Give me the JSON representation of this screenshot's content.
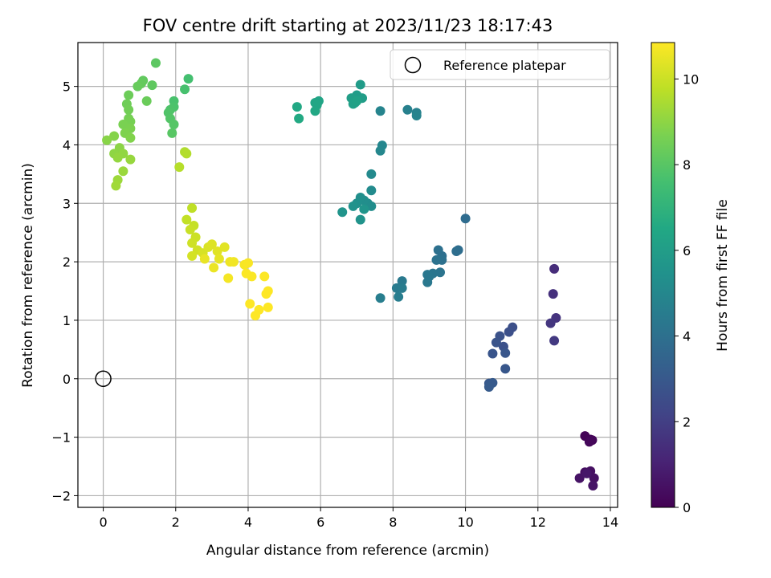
{
  "chart_data": {
    "type": "scatter",
    "title": "FOV centre drift starting at 2023/11/23 18:17:43",
    "xlabel": "Angular distance from reference (arcmin)",
    "ylabel": "Rotation from reference (arcmin)",
    "xlim": [
      -0.7,
      14.2
    ],
    "ylim": [
      -2.2,
      5.75
    ],
    "xticks": [
      0,
      2,
      4,
      6,
      8,
      10,
      12,
      14
    ],
    "yticks": [
      -2,
      -1,
      0,
      1,
      2,
      3,
      4,
      5
    ],
    "grid": true,
    "colormap": "viridis",
    "colorbar": {
      "label": "Hours from first FF file",
      "range": [
        0,
        10.85
      ],
      "ticks": [
        0,
        2,
        4,
        6,
        8,
        10
      ]
    },
    "legend": {
      "placement": "top-right",
      "entries": [
        "Reference platepar"
      ]
    },
    "reference_point": {
      "x": 0,
      "y": 0
    },
    "points": [
      [
        13.3,
        -0.98,
        0.05
      ],
      [
        13.45,
        -1.04,
        0.1
      ],
      [
        13.5,
        -1.05,
        0.15
      ],
      [
        13.42,
        -1.08,
        0.2
      ],
      [
        13.3,
        -1.6,
        0.4
      ],
      [
        13.45,
        -1.58,
        0.45
      ],
      [
        13.55,
        -1.7,
        0.5
      ],
      [
        13.15,
        -1.7,
        0.55
      ],
      [
        13.52,
        -1.83,
        0.6
      ],
      [
        13.35,
        -1.62,
        0.65
      ],
      [
        12.45,
        1.88,
        1.4
      ],
      [
        12.42,
        1.45,
        1.5
      ],
      [
        12.5,
        1.04,
        1.6
      ],
      [
        12.35,
        0.95,
        1.7
      ],
      [
        12.45,
        0.65,
        1.8
      ],
      [
        11.3,
        0.88,
        2.6
      ],
      [
        11.2,
        0.8,
        2.65
      ],
      [
        11.05,
        0.55,
        2.7
      ],
      [
        10.95,
        0.73,
        2.75
      ],
      [
        10.85,
        0.62,
        2.8
      ],
      [
        10.75,
        0.43,
        2.85
      ],
      [
        11.1,
        0.44,
        2.9
      ],
      [
        11.1,
        0.17,
        2.95
      ],
      [
        10.65,
        -0.08,
        3.0
      ],
      [
        10.75,
        -0.07,
        3.05
      ],
      [
        10.65,
        -0.14,
        3.1
      ],
      [
        10.0,
        2.74,
        3.8
      ],
      [
        9.8,
        2.2,
        3.85
      ],
      [
        9.75,
        2.18,
        3.9
      ],
      [
        9.35,
        2.1,
        3.95
      ],
      [
        9.25,
        2.2,
        4.0
      ],
      [
        9.35,
        2.03,
        4.05
      ],
      [
        9.2,
        2.03,
        4.1
      ],
      [
        9.3,
        1.82,
        4.15
      ],
      [
        9.1,
        1.8,
        4.2
      ],
      [
        9.0,
        1.75,
        4.25
      ],
      [
        8.95,
        1.78,
        4.3
      ],
      [
        8.95,
        1.65,
        4.35
      ],
      [
        8.25,
        1.67,
        4.4
      ],
      [
        8.1,
        1.55,
        4.45
      ],
      [
        8.25,
        1.55,
        4.5
      ],
      [
        8.15,
        1.4,
        4.55
      ],
      [
        7.65,
        1.38,
        4.6
      ],
      [
        8.4,
        4.6,
        4.7
      ],
      [
        8.65,
        4.55,
        4.75
      ],
      [
        8.65,
        4.5,
        4.8
      ],
      [
        7.65,
        4.58,
        4.85
      ],
      [
        7.7,
        3.99,
        4.95
      ],
      [
        7.65,
        3.9,
        5.0
      ],
      [
        7.4,
        3.5,
        5.1
      ],
      [
        7.4,
        3.22,
        5.15
      ],
      [
        7.3,
        3.0,
        5.2
      ],
      [
        7.4,
        2.95,
        5.25
      ],
      [
        7.2,
        3.05,
        5.3
      ],
      [
        7.1,
        3.1,
        5.35
      ],
      [
        7.0,
        3.0,
        5.4
      ],
      [
        6.9,
        2.95,
        5.45
      ],
      [
        7.1,
        2.72,
        5.5
      ],
      [
        6.6,
        2.85,
        5.55
      ],
      [
        7.2,
        2.9,
        5.6
      ],
      [
        7.1,
        5.03,
        5.9
      ],
      [
        7.0,
        4.85,
        5.95
      ],
      [
        7.15,
        4.8,
        6.0
      ],
      [
        6.85,
        4.8,
        6.05
      ],
      [
        6.95,
        4.72,
        6.1
      ],
      [
        6.9,
        4.7,
        6.15
      ],
      [
        7.0,
        4.75,
        6.2
      ],
      [
        5.95,
        4.75,
        6.3
      ],
      [
        5.85,
        4.72,
        6.35
      ],
      [
        5.9,
        4.68,
        6.4
      ],
      [
        5.85,
        4.58,
        6.45
      ],
      [
        5.35,
        4.65,
        6.5
      ],
      [
        5.4,
        4.45,
        6.55
      ],
      [
        2.35,
        5.13,
        7.6
      ],
      [
        2.25,
        4.95,
        7.65
      ],
      [
        1.95,
        4.75,
        7.7
      ],
      [
        1.95,
        4.65,
        7.75
      ],
      [
        1.85,
        4.6,
        7.8
      ],
      [
        1.8,
        4.55,
        7.85
      ],
      [
        1.85,
        4.45,
        7.9
      ],
      [
        1.95,
        4.35,
        7.95
      ],
      [
        1.9,
        4.2,
        8.0
      ],
      [
        1.45,
        5.4,
        8.1
      ],
      [
        1.35,
        5.02,
        8.15
      ],
      [
        1.1,
        5.1,
        8.2
      ],
      [
        1.05,
        5.05,
        8.25
      ],
      [
        0.95,
        5.0,
        8.3
      ],
      [
        1.2,
        4.75,
        8.35
      ],
      [
        0.7,
        4.85,
        8.4
      ],
      [
        0.65,
        4.7,
        8.45
      ],
      [
        0.7,
        4.6,
        8.5
      ],
      [
        0.7,
        4.45,
        8.55
      ],
      [
        0.75,
        4.4,
        8.6
      ],
      [
        0.55,
        4.35,
        8.65
      ],
      [
        0.75,
        4.28,
        8.7
      ],
      [
        0.6,
        4.2,
        8.75
      ],
      [
        0.75,
        4.12,
        8.8
      ],
      [
        0.3,
        4.15,
        8.85
      ],
      [
        0.1,
        4.08,
        8.9
      ],
      [
        0.45,
        3.95,
        8.95
      ],
      [
        0.3,
        3.85,
        9.0
      ],
      [
        0.55,
        3.85,
        9.05
      ],
      [
        0.4,
        3.78,
        9.1
      ],
      [
        0.75,
        3.75,
        9.15
      ],
      [
        0.55,
        3.55,
        9.2
      ],
      [
        0.4,
        3.4,
        9.25
      ],
      [
        0.35,
        3.3,
        9.3
      ],
      [
        2.25,
        3.88,
        9.55
      ],
      [
        2.3,
        3.85,
        9.6
      ],
      [
        2.1,
        3.62,
        9.65
      ],
      [
        2.45,
        2.92,
        9.8
      ],
      [
        2.3,
        2.72,
        9.85
      ],
      [
        2.5,
        2.62,
        9.9
      ],
      [
        2.4,
        2.55,
        9.95
      ],
      [
        2.55,
        2.42,
        10.0
      ],
      [
        2.45,
        2.32,
        10.05
      ],
      [
        2.6,
        2.2,
        10.1
      ],
      [
        2.45,
        2.1,
        10.15
      ],
      [
        2.75,
        2.15,
        10.2
      ],
      [
        2.9,
        2.25,
        10.25
      ],
      [
        3.0,
        2.3,
        10.3
      ],
      [
        3.15,
        2.18,
        10.35
      ],
      [
        3.35,
        2.25,
        10.4
      ],
      [
        3.2,
        2.05,
        10.45
      ],
      [
        2.8,
        2.05,
        10.5
      ],
      [
        3.05,
        1.9,
        10.55
      ],
      [
        3.5,
        2.0,
        10.6
      ],
      [
        3.6,
        2.0,
        10.65
      ],
      [
        3.45,
        1.72,
        10.7
      ],
      [
        3.9,
        1.95,
        10.75
      ],
      [
        4.0,
        1.98,
        10.78
      ],
      [
        4.1,
        1.75,
        10.8
      ],
      [
        3.95,
        1.8,
        10.82
      ],
      [
        4.45,
        1.75,
        10.84
      ],
      [
        4.55,
        1.5,
        10.85
      ],
      [
        4.5,
        1.45,
        10.85
      ],
      [
        4.55,
        1.22,
        10.85
      ],
      [
        4.3,
        1.18,
        10.85
      ],
      [
        4.05,
        1.28,
        10.85
      ],
      [
        4.2,
        1.08,
        10.85
      ]
    ]
  }
}
